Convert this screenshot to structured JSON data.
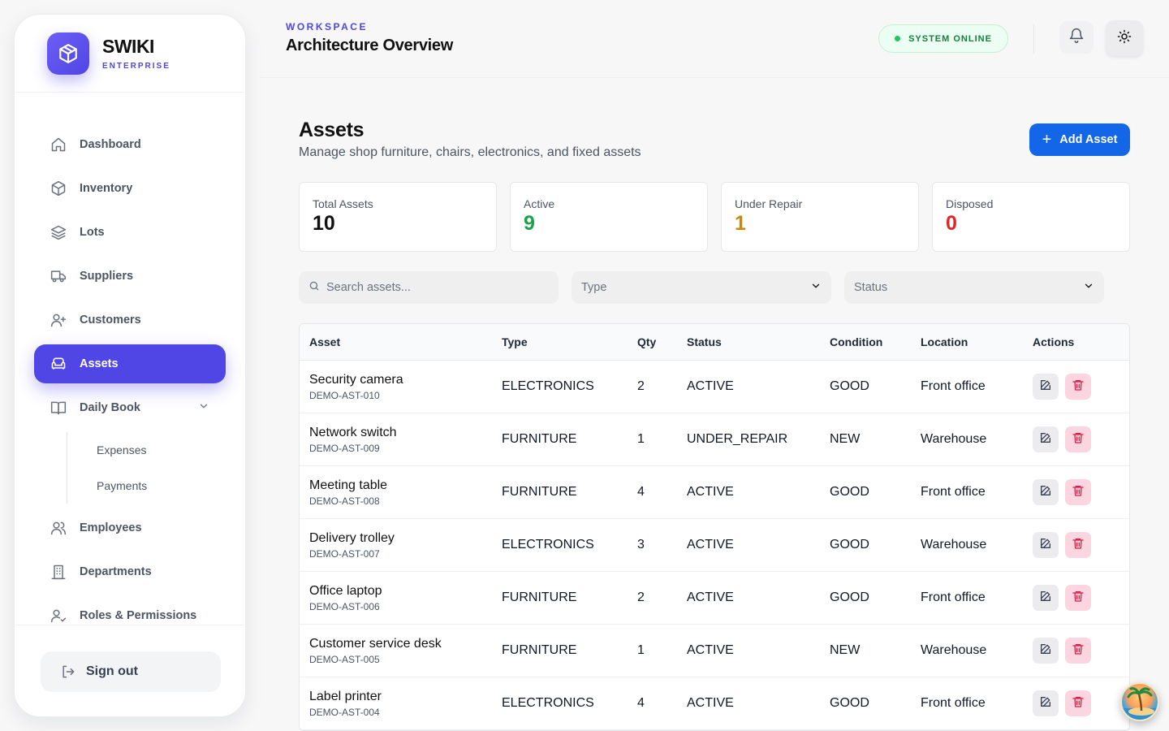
{
  "brand": {
    "name": "SWIKI",
    "sub": "ENTERPRISE"
  },
  "nav": {
    "items": [
      {
        "label": "Dashboard",
        "icon": "home-icon"
      },
      {
        "label": "Inventory",
        "icon": "box-icon"
      },
      {
        "label": "Lots",
        "icon": "layers-icon"
      },
      {
        "label": "Suppliers",
        "icon": "truck-icon"
      },
      {
        "label": "Customers",
        "icon": "user-plus-icon"
      },
      {
        "label": "Assets",
        "icon": "sofa-icon",
        "active": true
      },
      {
        "label": "Daily Book",
        "icon": "book-icon"
      },
      {
        "label": "Employees",
        "icon": "users-icon"
      },
      {
        "label": "Departments",
        "icon": "building-icon"
      },
      {
        "label": "Roles & Permissions",
        "icon": "user-check-icon"
      }
    ],
    "daily_book_sub": [
      "Expenses",
      "Payments"
    ],
    "signout_label": "Sign out"
  },
  "topbar": {
    "workspace_label": "WORKSPACE",
    "workspace_title": "Architecture Overview",
    "system_status": "SYSTEM ONLINE"
  },
  "page": {
    "title": "Assets",
    "subtitle": "Manage shop furniture, chairs, electronics, and fixed assets",
    "add_button": "Add Asset"
  },
  "stats": [
    {
      "label": "Total Assets",
      "value": "10",
      "color": "#111111"
    },
    {
      "label": "Active",
      "value": "9",
      "color": "#16a34a"
    },
    {
      "label": "Under Repair",
      "value": "1",
      "color": "#ca8a04"
    },
    {
      "label": "Disposed",
      "value": "0",
      "color": "#dc2626"
    }
  ],
  "filters": {
    "search_placeholder": "Search assets...",
    "type_placeholder": "Type",
    "status_placeholder": "Status"
  },
  "table": {
    "headers": [
      "Asset",
      "Type",
      "Qty",
      "Status",
      "Condition",
      "Location",
      "Actions"
    ],
    "rows": [
      {
        "name": "Security camera",
        "code": "DEMO-AST-010",
        "type": "ELECTRONICS",
        "qty": "2",
        "status": "ACTIVE",
        "condition": "GOOD",
        "location": "Front office"
      },
      {
        "name": "Network switch",
        "code": "DEMO-AST-009",
        "type": "FURNITURE",
        "qty": "1",
        "status": "UNDER_REPAIR",
        "condition": "NEW",
        "location": "Warehouse"
      },
      {
        "name": "Meeting table",
        "code": "DEMO-AST-008",
        "type": "FURNITURE",
        "qty": "4",
        "status": "ACTIVE",
        "condition": "GOOD",
        "location": "Front office"
      },
      {
        "name": "Delivery trolley",
        "code": "DEMO-AST-007",
        "type": "ELECTRONICS",
        "qty": "3",
        "status": "ACTIVE",
        "condition": "GOOD",
        "location": "Warehouse"
      },
      {
        "name": "Office laptop",
        "code": "DEMO-AST-006",
        "type": "FURNITURE",
        "qty": "2",
        "status": "ACTIVE",
        "condition": "GOOD",
        "location": "Front office"
      },
      {
        "name": "Customer service desk",
        "code": "DEMO-AST-005",
        "type": "FURNITURE",
        "qty": "1",
        "status": "ACTIVE",
        "condition": "NEW",
        "location": "Warehouse"
      },
      {
        "name": "Label printer",
        "code": "DEMO-AST-004",
        "type": "ELECTRONICS",
        "qty": "4",
        "status": "ACTIVE",
        "condition": "GOOD",
        "location": "Front office"
      }
    ]
  },
  "colors": {
    "accent": "#4f46e5",
    "primary_button": "#1466e8",
    "online": "#15803d",
    "delete_bg": "#fbd5df"
  }
}
